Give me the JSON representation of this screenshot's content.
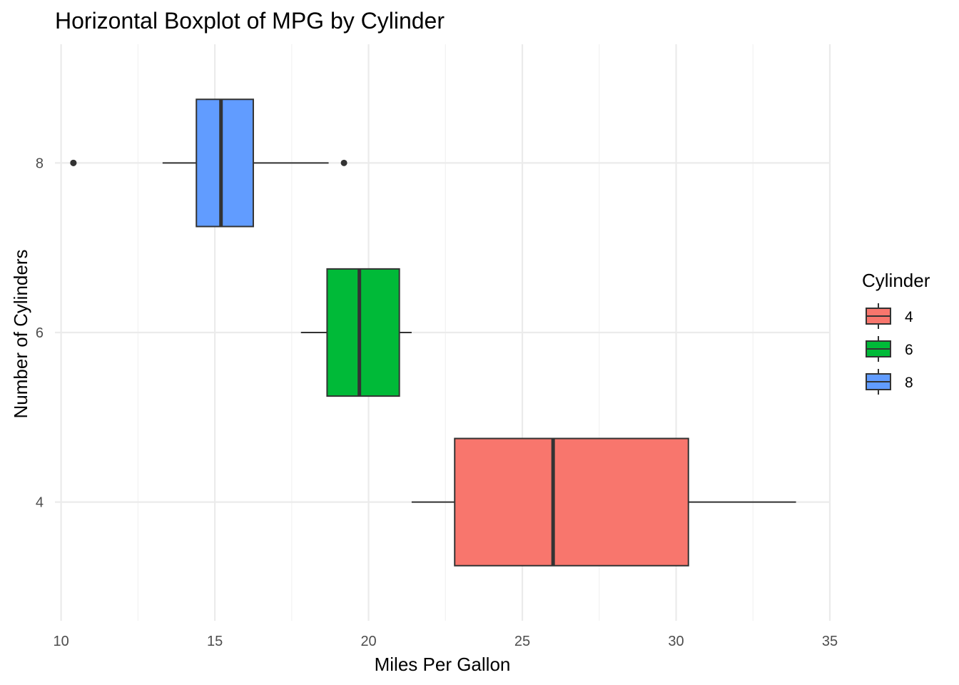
{
  "chart_data": {
    "type": "boxplot",
    "orientation": "horizontal",
    "title": "Horizontal Boxplot of MPG by Cylinder",
    "xlabel": "Miles Per Gallon",
    "ylabel": "Number of Cylinders",
    "xlim": [
      9.8,
      35.0
    ],
    "ylim": [
      2.6,
      9.4
    ],
    "x_ticks": [
      10,
      15,
      20,
      25,
      30,
      35
    ],
    "x_tick_labels": [
      "10",
      "15",
      "20",
      "25",
      "30",
      "35"
    ],
    "y_ticks": [
      4,
      6,
      8
    ],
    "y_tick_labels": [
      "4",
      "6",
      "8"
    ],
    "grid": true,
    "legend": {
      "title": "Cylinder",
      "placement": "right",
      "entries": [
        "4",
        "6",
        "8"
      ]
    },
    "series": [
      {
        "name": "4",
        "y": 4,
        "color": "#F8766D",
        "whisker_low": 21.4,
        "q1": 22.8,
        "median": 26.0,
        "q3": 30.4,
        "whisker_high": 33.9,
        "outliers": []
      },
      {
        "name": "6",
        "y": 6,
        "color": "#00BA38",
        "whisker_low": 17.8,
        "q1": 18.65,
        "median": 19.7,
        "q3": 21.0,
        "whisker_high": 21.4,
        "outliers": []
      },
      {
        "name": "8",
        "y": 8,
        "color": "#619CFF",
        "whisker_low": 13.3,
        "q1": 14.4,
        "median": 15.2,
        "q3": 16.25,
        "whisker_high": 18.7,
        "outliers": [
          10.4,
          10.4,
          19.2
        ]
      }
    ]
  }
}
